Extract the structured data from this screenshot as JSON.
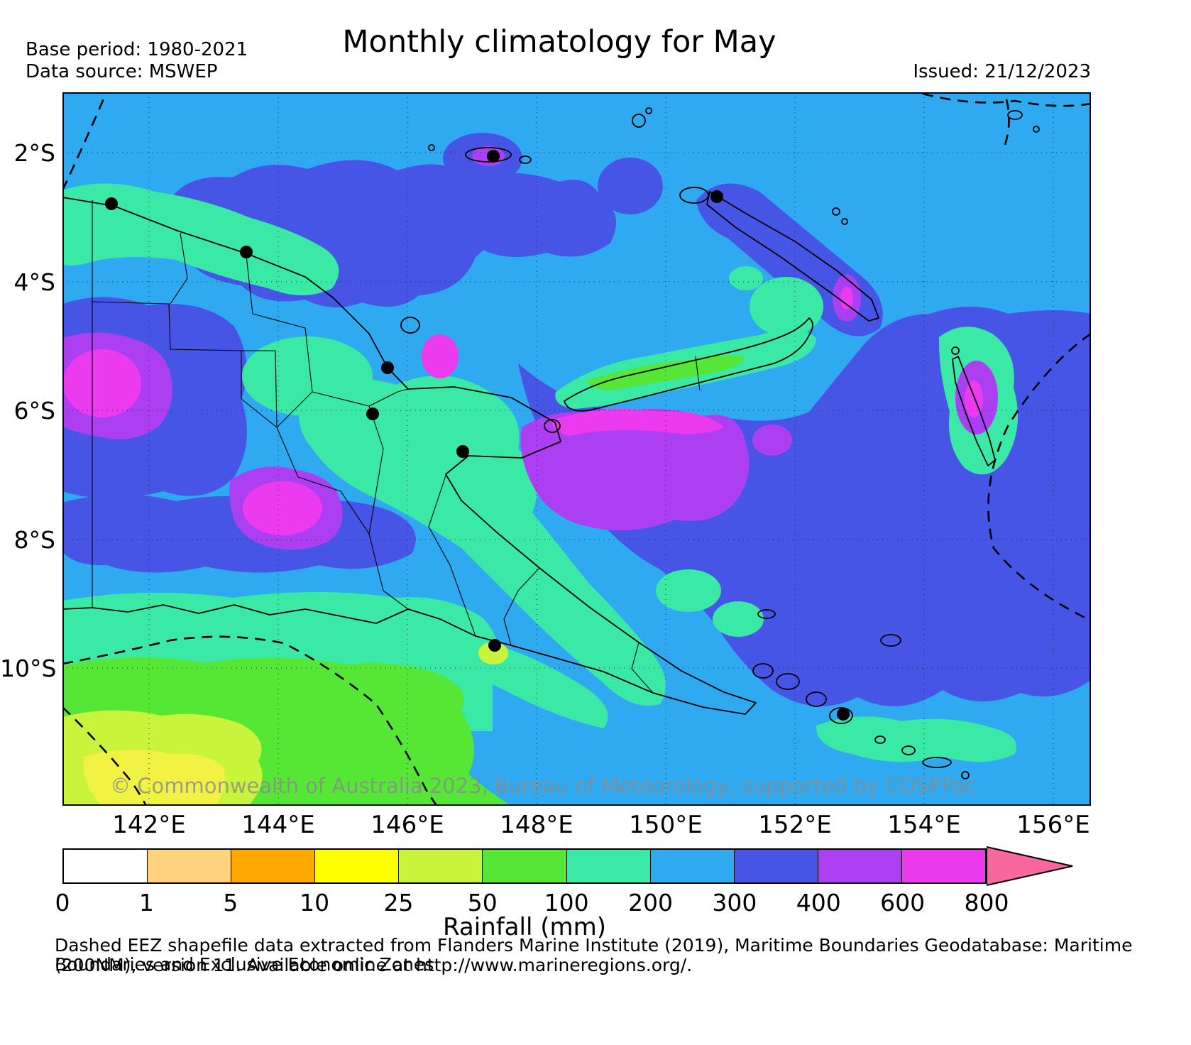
{
  "header": {
    "title": "Monthly climatology for May",
    "base_period": "Base period: 1980-2021",
    "data_source": "Data source: MSWEP",
    "issued": "Issued: 21/12/2023"
  },
  "map": {
    "lat_labels": [
      "2°S",
      "4°S",
      "6°S",
      "8°S",
      "10°S"
    ],
    "lon_labels": [
      "142°E",
      "144°E",
      "146°E",
      "148°E",
      "150°E",
      "152°E",
      "154°E",
      "156°E"
    ],
    "watermark": "© Commonwealth of Australia 2023, Bureau of Meteorology, supported by COSPPac"
  },
  "colorbar": {
    "label": "Rainfall (mm)",
    "ticks": [
      "0",
      "1",
      "5",
      "10",
      "25",
      "50",
      "100",
      "200",
      "300",
      "400",
      "600",
      "800"
    ],
    "colors": [
      "#ffffff",
      "#ffd27f",
      "#ffa800",
      "#ffff00",
      "#c8f43c",
      "#55e636",
      "#3be9a6",
      "#2fa9f0",
      "#4655e6",
      "#ad3ff2",
      "#ec3bee"
    ],
    "arrow_color": "#f9679f"
  },
  "footer": {
    "line1": "Dashed EEZ shapefile data extracted from Flanders Marine Institute (2019), Maritime Boundaries Geodatabase: Maritime Boundaries and Exclusive Economic Zones",
    "line2": "(200NM), version 11. Available online at http://www.marineregions.org/."
  }
}
